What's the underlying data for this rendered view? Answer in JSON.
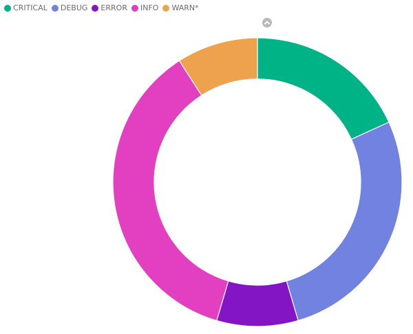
{
  "chart_data": {
    "type": "pie",
    "subtype": "donut",
    "title": "",
    "categories": [
      "CRITICAL",
      "DEBUG",
      "ERROR",
      "INFO",
      "WARN*"
    ],
    "values": [
      2,
      3,
      1,
      4,
      1
    ],
    "percentages": [
      18.18,
      27.27,
      9.09,
      36.36,
      9.09
    ],
    "colors": [
      "#00b386",
      "#7282e0",
      "#8315c4",
      "#e33fc1",
      "#efa24e"
    ],
    "legend_position": "top-left",
    "start_angle_deg": 0,
    "direction": "clockwise",
    "center": [
      374,
      265
    ],
    "outer_radius": 210,
    "inner_radius": 150
  },
  "legend": {
    "items": [
      {
        "label": "CRITICAL",
        "color": "#00b386"
      },
      {
        "label": "DEBUG",
        "color": "#7282e0"
      },
      {
        "label": "ERROR",
        "color": "#8315c4"
      },
      {
        "label": "INFO",
        "color": "#e33fc1"
      },
      {
        "label": "WARN*",
        "color": "#efa24e"
      }
    ]
  },
  "controls": {
    "collapse_icon": "chevron-up-circle-icon"
  }
}
